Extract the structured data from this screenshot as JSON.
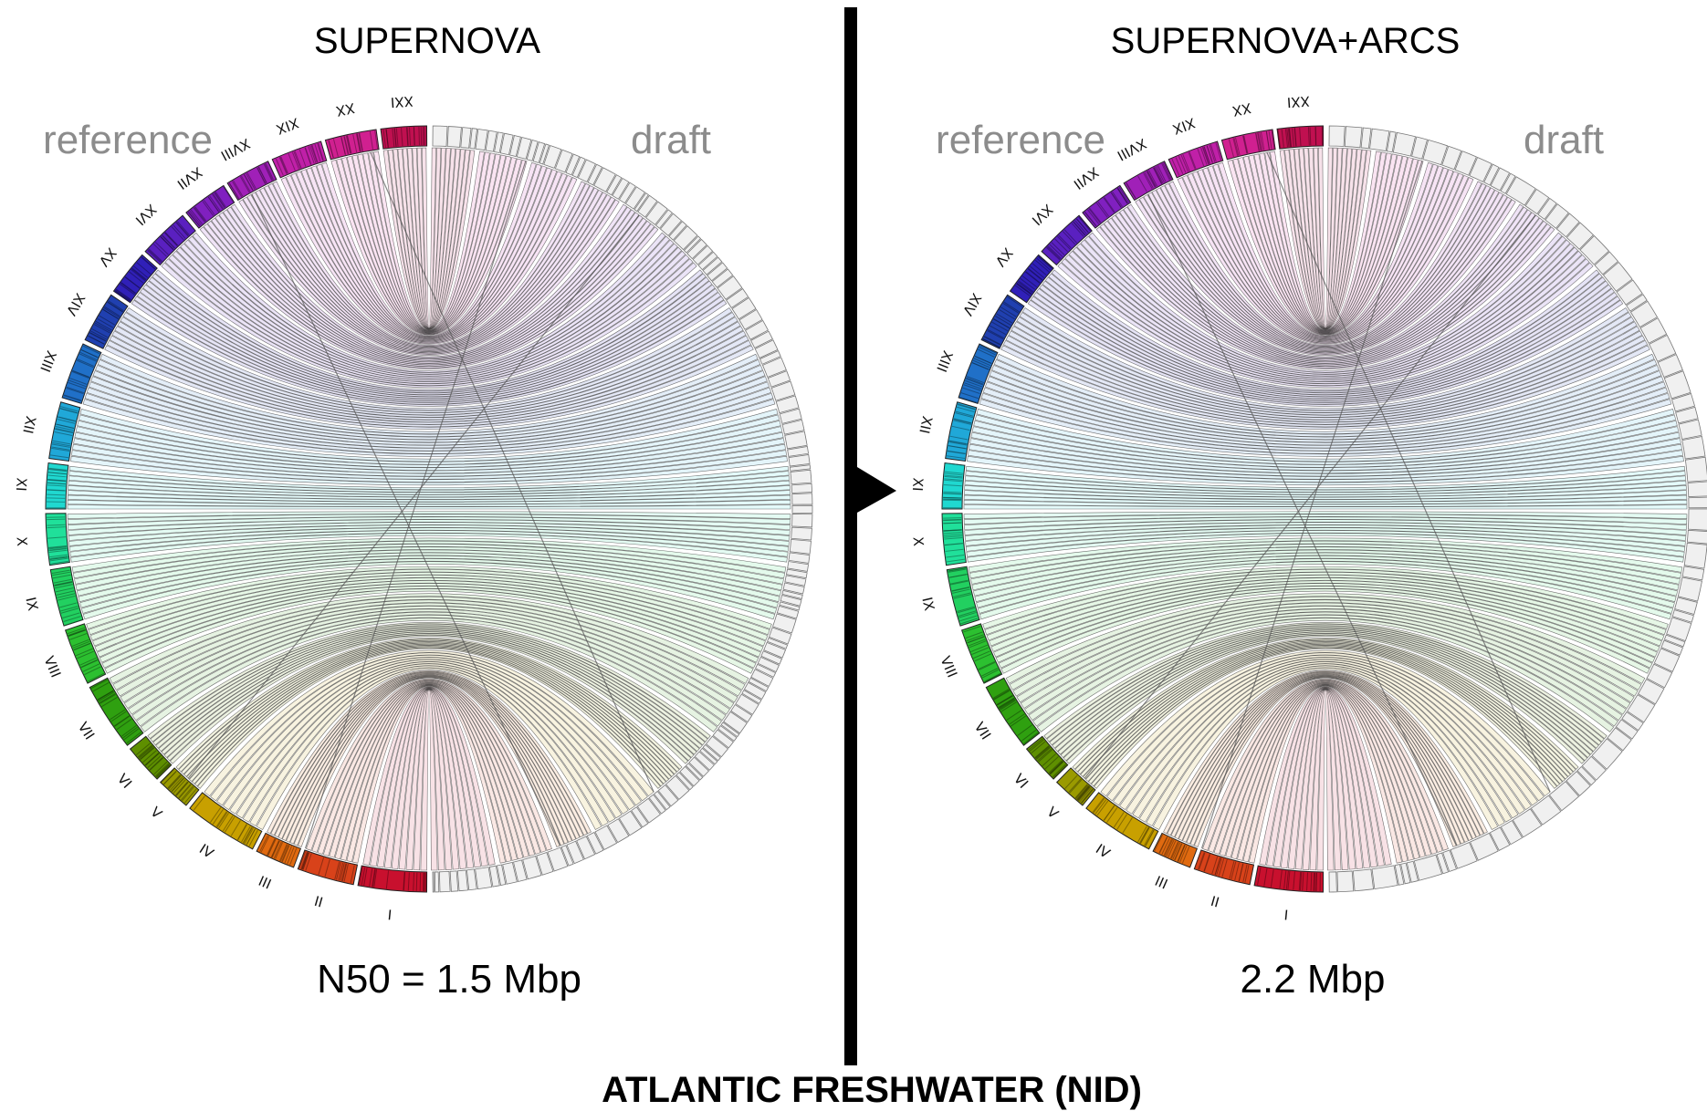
{
  "footer_title": "ATLANTIC FRESHWATER (NID)",
  "chromosomes": [
    "I",
    "II",
    "III",
    "IV",
    "V",
    "VI",
    "VII",
    "VIII",
    "IX",
    "X",
    "XI",
    "XII",
    "XIII",
    "XIV",
    "XV",
    "XVI",
    "XVII",
    "XVIII",
    "XIX",
    "XX",
    "XXI"
  ],
  "chromosome_colors": [
    "#c8102e",
    "#d8421a",
    "#e06a10",
    "#c8a000",
    "#9a9a00",
    "#5e8f00",
    "#2fa010",
    "#2cc030",
    "#22d060",
    "#20e09a",
    "#20d8d0",
    "#20a8d8",
    "#2070c8",
    "#2040b0",
    "#3020b8",
    "#5a20c0",
    "#8020c0",
    "#a020b8",
    "#c020a8",
    "#d02090",
    "#c01050"
  ],
  "panels": [
    {
      "title": "SUPERNOVA",
      "left_label": "reference",
      "right_label": "draft",
      "stat": "N50 = 1.5 Mbp"
    },
    {
      "title": "SUPERNOVA+ARCS",
      "left_label": "reference",
      "right_label": "draft",
      "stat": "2.2 Mbp"
    }
  ]
}
